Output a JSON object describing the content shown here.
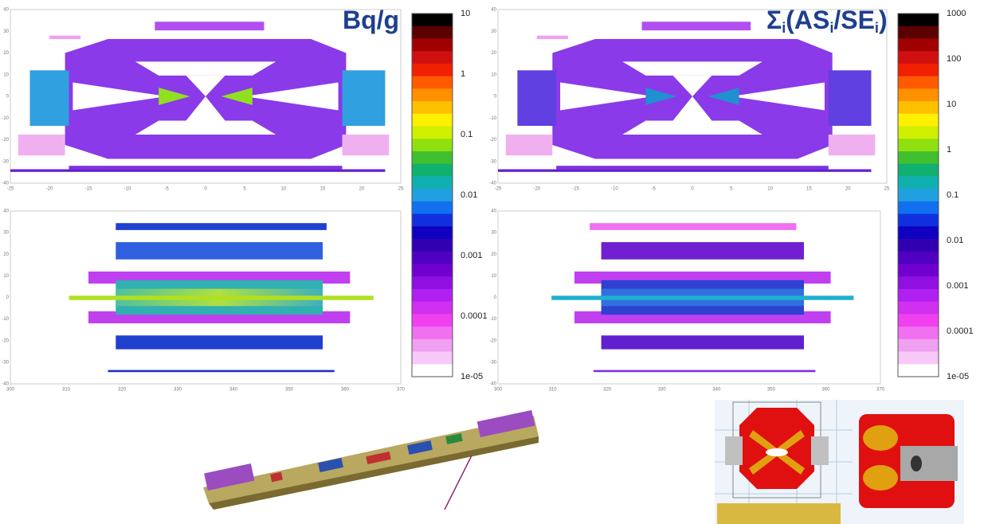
{
  "panels": [
    {
      "title_parts": [
        "Bq/g"
      ],
      "colorbar_labels": [
        "10",
        "1",
        "0.1",
        "0.01",
        "0.001",
        "0.0001",
        "1e-05"
      ],
      "plots": [
        {
          "xticks": [
            -25,
            -20,
            -15,
            -10,
            -5,
            0,
            5,
            10,
            15,
            20,
            25
          ],
          "yticks": [
            40,
            30,
            20,
            10,
            0,
            -10,
            -20,
            -30,
            -40
          ]
        },
        {
          "xticks": [
            300,
            310,
            320,
            330,
            340,
            350,
            360,
            370
          ],
          "yticks": [
            40,
            30,
            20,
            10,
            0,
            -10,
            -20,
            -30,
            -40
          ]
        }
      ]
    },
    {
      "title_parts": [
        "Σ",
        "i",
        "(AS",
        "i",
        "/SE",
        "i",
        ")"
      ],
      "colorbar_labels": [
        "1000",
        "100",
        "10",
        "1",
        "0.1",
        "0.01",
        "0.001",
        "0.0001",
        "1e-05"
      ],
      "plots": [
        {
          "xticks": [
            -25,
            -20,
            -15,
            -10,
            -5,
            0,
            5,
            10,
            15,
            20,
            25
          ],
          "yticks": [
            40,
            30,
            20,
            10,
            0,
            -10,
            -20,
            -30,
            -40
          ]
        },
        {
          "xticks": [
            300,
            310,
            320,
            330,
            340,
            350,
            360,
            370
          ],
          "yticks": [
            40,
            30,
            20,
            10,
            0,
            -10,
            -20,
            -30,
            -40
          ]
        }
      ]
    }
  ]
}
